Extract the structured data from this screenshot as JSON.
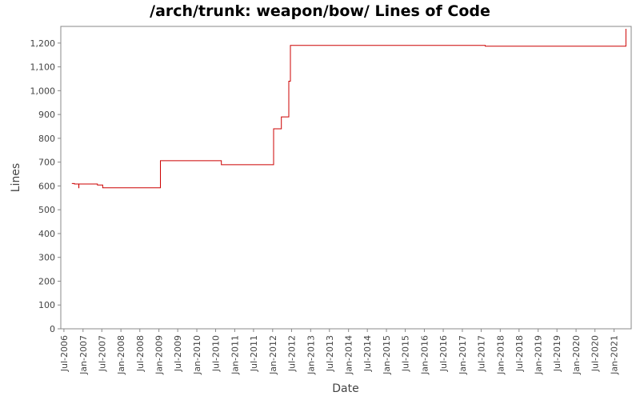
{
  "chart_data": {
    "type": "line",
    "title": "/arch/trunk: weapon/bow/ Lines of Code",
    "xlabel": "Date",
    "ylabel": "Lines",
    "ylim": [
      0,
      1270
    ],
    "xlim": [
      "2006-06-01",
      "2021-06-15"
    ],
    "yticks": [
      0,
      100,
      200,
      300,
      400,
      500,
      600,
      700,
      800,
      900,
      1000,
      1100,
      1200
    ],
    "ytick_labels": [
      "0",
      "100",
      "200",
      "300",
      "400",
      "500",
      "600",
      "700",
      "800",
      "900",
      "1,000",
      "1,100",
      "1,200"
    ],
    "xticks": [
      "2006-07-01",
      "2007-01-01",
      "2007-07-01",
      "2008-01-01",
      "2008-07-01",
      "2009-01-01",
      "2009-07-01",
      "2010-01-01",
      "2010-07-01",
      "2011-01-01",
      "2011-07-01",
      "2012-01-01",
      "2012-07-01",
      "2013-01-01",
      "2013-07-01",
      "2014-01-01",
      "2014-07-01",
      "2015-01-01",
      "2015-07-01",
      "2016-01-01",
      "2016-07-01",
      "2017-01-01",
      "2017-07-01",
      "2018-01-01",
      "2018-07-01",
      "2019-01-01",
      "2019-07-01",
      "2020-01-01",
      "2020-07-01",
      "2021-01-01"
    ],
    "xtick_labels": [
      "Jul-2006",
      "Jan-2007",
      "Jul-2007",
      "Jan-2008",
      "Jul-2008",
      "Jan-2009",
      "Jul-2009",
      "Jan-2010",
      "Jul-2010",
      "Jan-2011",
      "Jul-2011",
      "Jan-2012",
      "Jul-2012",
      "Jan-2013",
      "Jul-2013",
      "Jan-2014",
      "Jul-2014",
      "Jan-2015",
      "Jul-2015",
      "Jan-2016",
      "Jul-2016",
      "Jan-2017",
      "Jul-2017",
      "Jan-2018",
      "Jul-2018",
      "Jan-2019",
      "Jul-2019",
      "Jan-2020",
      "Jul-2020",
      "Jan-2021"
    ],
    "grid": false,
    "line_color": "#cc0000",
    "series": [
      {
        "points": [
          [
            "2006-09-15",
            610
          ],
          [
            "2006-10-10",
            608
          ],
          [
            "2006-11-20",
            608
          ],
          [
            "2006-11-21",
            592
          ],
          [
            "2006-11-22",
            608
          ],
          [
            "2007-05-15",
            608
          ],
          [
            "2007-05-20",
            604
          ],
          [
            "2007-07-05",
            604
          ],
          [
            "2007-07-10",
            592
          ],
          [
            "2009-01-10",
            592
          ],
          [
            "2009-01-15",
            706
          ],
          [
            "2010-08-20",
            706
          ],
          [
            "2010-08-25",
            689
          ],
          [
            "2012-01-05",
            689
          ],
          [
            "2012-01-10",
            840
          ],
          [
            "2012-03-20",
            840
          ],
          [
            "2012-03-25",
            890
          ],
          [
            "2012-06-01",
            890
          ],
          [
            "2012-06-05",
            1040
          ],
          [
            "2012-06-15",
            1040
          ],
          [
            "2012-06-20",
            1190
          ],
          [
            "2017-08-05",
            1190
          ],
          [
            "2017-08-10",
            1187
          ],
          [
            "2021-04-20",
            1187
          ],
          [
            "2021-04-25",
            1260
          ]
        ]
      }
    ]
  }
}
